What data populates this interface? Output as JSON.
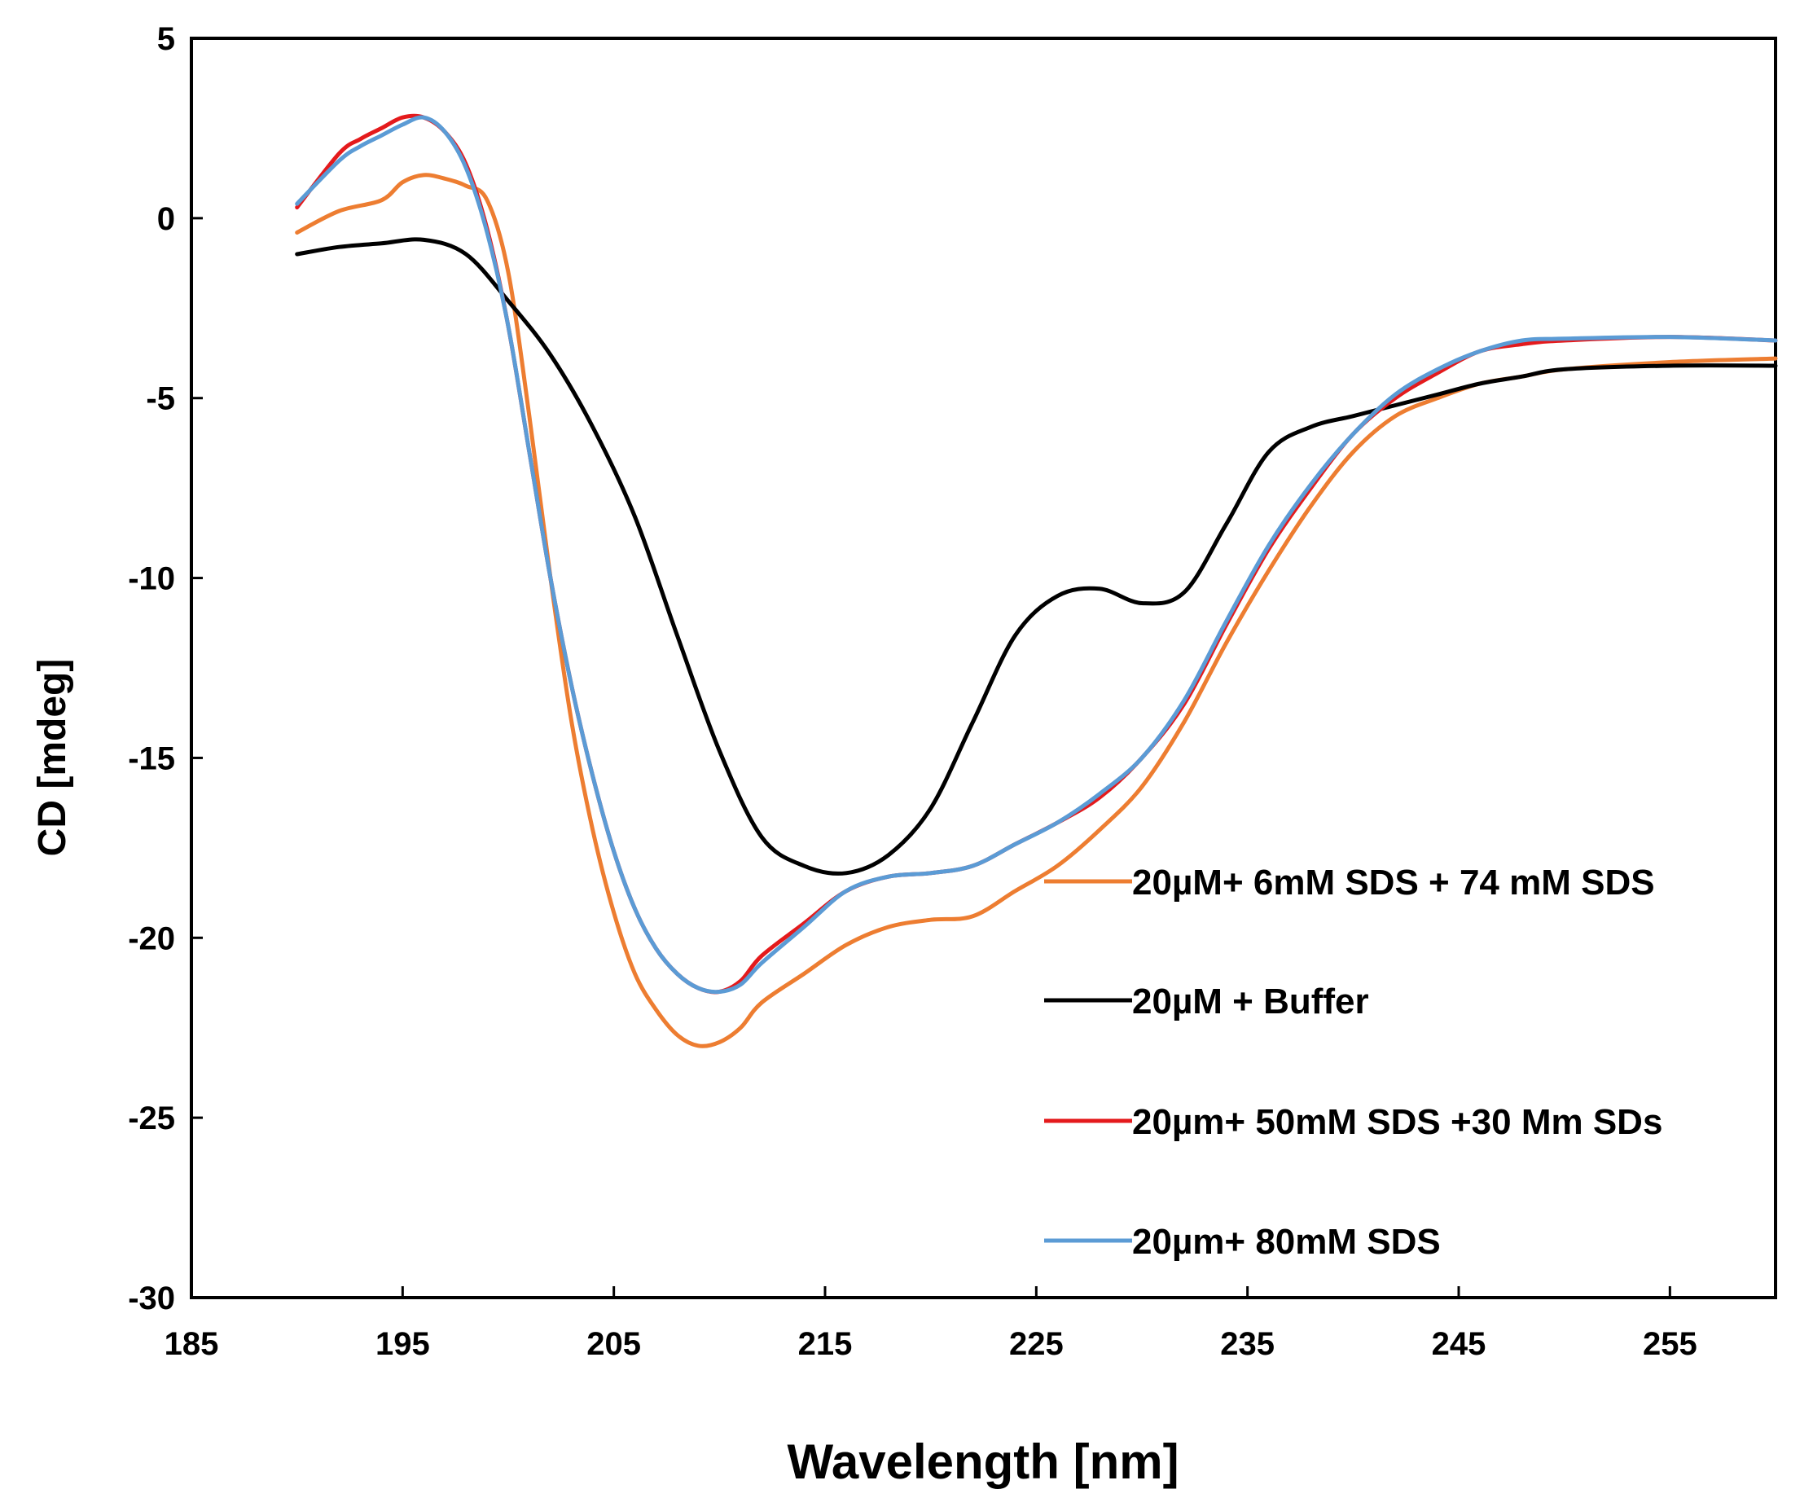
{
  "chart_data": {
    "type": "line",
    "title": "",
    "xlabel": "Wavelength [nm]",
    "ylabel": "CD [mdeg]",
    "xlim": [
      185,
      260
    ],
    "ylim": [
      -30,
      5
    ],
    "xticks": [
      185,
      195,
      205,
      215,
      225,
      235,
      245,
      255
    ],
    "yticks": [
      5,
      0,
      -5,
      -10,
      -15,
      -20,
      -25,
      -30
    ],
    "grid": false,
    "legend_position": "center-right",
    "series": [
      {
        "name": "20µM+ 6mM SDS + 74 mM SDS",
        "color": "#ED7D31",
        "x": [
          190,
          192,
          194,
          195,
          196,
          197,
          198,
          199,
          200,
          201,
          202,
          203,
          204,
          205,
          206,
          207,
          208,
          209,
          210,
          211,
          212,
          214,
          216,
          218,
          220,
          222,
          224,
          226,
          228,
          230,
          232,
          234,
          236,
          238,
          240,
          242,
          244,
          246,
          248,
          250,
          255,
          260
        ],
        "y": [
          -0.4,
          0.2,
          0.5,
          1.0,
          1.2,
          1.1,
          0.9,
          0.5,
          -1.5,
          -5.5,
          -10.0,
          -14.0,
          -17.0,
          -19.3,
          -21.0,
          -22.0,
          -22.7,
          -23.0,
          -22.9,
          -22.5,
          -21.8,
          -21.0,
          -20.2,
          -19.7,
          -19.5,
          -19.4,
          -18.7,
          -18.0,
          -17.0,
          -15.8,
          -14.0,
          -11.8,
          -9.8,
          -8.0,
          -6.5,
          -5.5,
          -5.0,
          -4.6,
          -4.4,
          -4.2,
          -4.0,
          -3.9
        ]
      },
      {
        "name": "20µM + Buffer",
        "color": "#000000",
        "x": [
          190,
          192,
          194,
          196,
          198,
          200,
          202,
          204,
          206,
          208,
          210,
          212,
          214,
          216,
          218,
          220,
          222,
          224,
          226,
          228,
          230,
          232,
          234,
          236,
          238,
          240,
          242,
          244,
          246,
          248,
          250,
          255,
          260
        ],
        "y": [
          -1.0,
          -0.8,
          -0.7,
          -0.6,
          -1.0,
          -2.3,
          -3.8,
          -5.8,
          -8.3,
          -11.6,
          -14.8,
          -17.2,
          -18.0,
          -18.2,
          -17.7,
          -16.4,
          -14.0,
          -11.6,
          -10.5,
          -10.3,
          -10.7,
          -10.4,
          -8.5,
          -6.5,
          -5.8,
          -5.5,
          -5.2,
          -4.9,
          -4.6,
          -4.4,
          -4.2,
          -4.1,
          -4.1
        ]
      },
      {
        "name": "20µm+ 50mM SDS +30 Mm SDs",
        "color": "#E41A1C",
        "x": [
          190,
          192,
          193,
          194,
          195,
          196,
          197,
          198,
          199,
          200,
          201,
          202,
          203,
          204,
          205,
          206,
          207,
          208,
          209,
          210,
          211,
          212,
          214,
          216,
          218,
          220,
          222,
          224,
          226,
          228,
          230,
          232,
          234,
          236,
          238,
          240,
          242,
          244,
          246,
          248,
          250,
          255,
          260
        ],
        "y": [
          0.3,
          1.8,
          2.2,
          2.5,
          2.8,
          2.8,
          2.4,
          1.5,
          -0.3,
          -3.0,
          -6.5,
          -10.0,
          -13.0,
          -15.5,
          -17.6,
          -19.2,
          -20.3,
          -21.0,
          -21.4,
          -21.5,
          -21.2,
          -20.5,
          -19.6,
          -18.7,
          -18.3,
          -18.2,
          -18.0,
          -17.4,
          -16.8,
          -16.1,
          -15.0,
          -13.5,
          -11.3,
          -9.2,
          -7.5,
          -6.0,
          -5.0,
          -4.3,
          -3.7,
          -3.5,
          -3.4,
          -3.3,
          -3.4
        ]
      },
      {
        "name": "20µm+ 80mM SDS",
        "color": "#5B9BD5",
        "x": [
          190,
          192,
          193,
          194,
          195,
          196,
          197,
          198,
          199,
          200,
          201,
          202,
          203,
          204,
          205,
          206,
          207,
          208,
          209,
          210,
          211,
          212,
          214,
          216,
          218,
          220,
          222,
          224,
          226,
          228,
          230,
          232,
          234,
          236,
          238,
          240,
          242,
          244,
          246,
          248,
          250,
          255,
          260
        ],
        "y": [
          0.4,
          1.6,
          2.0,
          2.3,
          2.6,
          2.8,
          2.4,
          1.4,
          -0.4,
          -3.0,
          -6.5,
          -10.0,
          -13.0,
          -15.5,
          -17.6,
          -19.2,
          -20.3,
          -21.0,
          -21.4,
          -21.5,
          -21.3,
          -20.7,
          -19.7,
          -18.7,
          -18.3,
          -18.2,
          -18.0,
          -17.4,
          -16.8,
          -16.0,
          -15.0,
          -13.4,
          -11.2,
          -9.1,
          -7.4,
          -6.0,
          -4.9,
          -4.2,
          -3.7,
          -3.4,
          -3.35,
          -3.3,
          -3.4
        ]
      }
    ]
  }
}
